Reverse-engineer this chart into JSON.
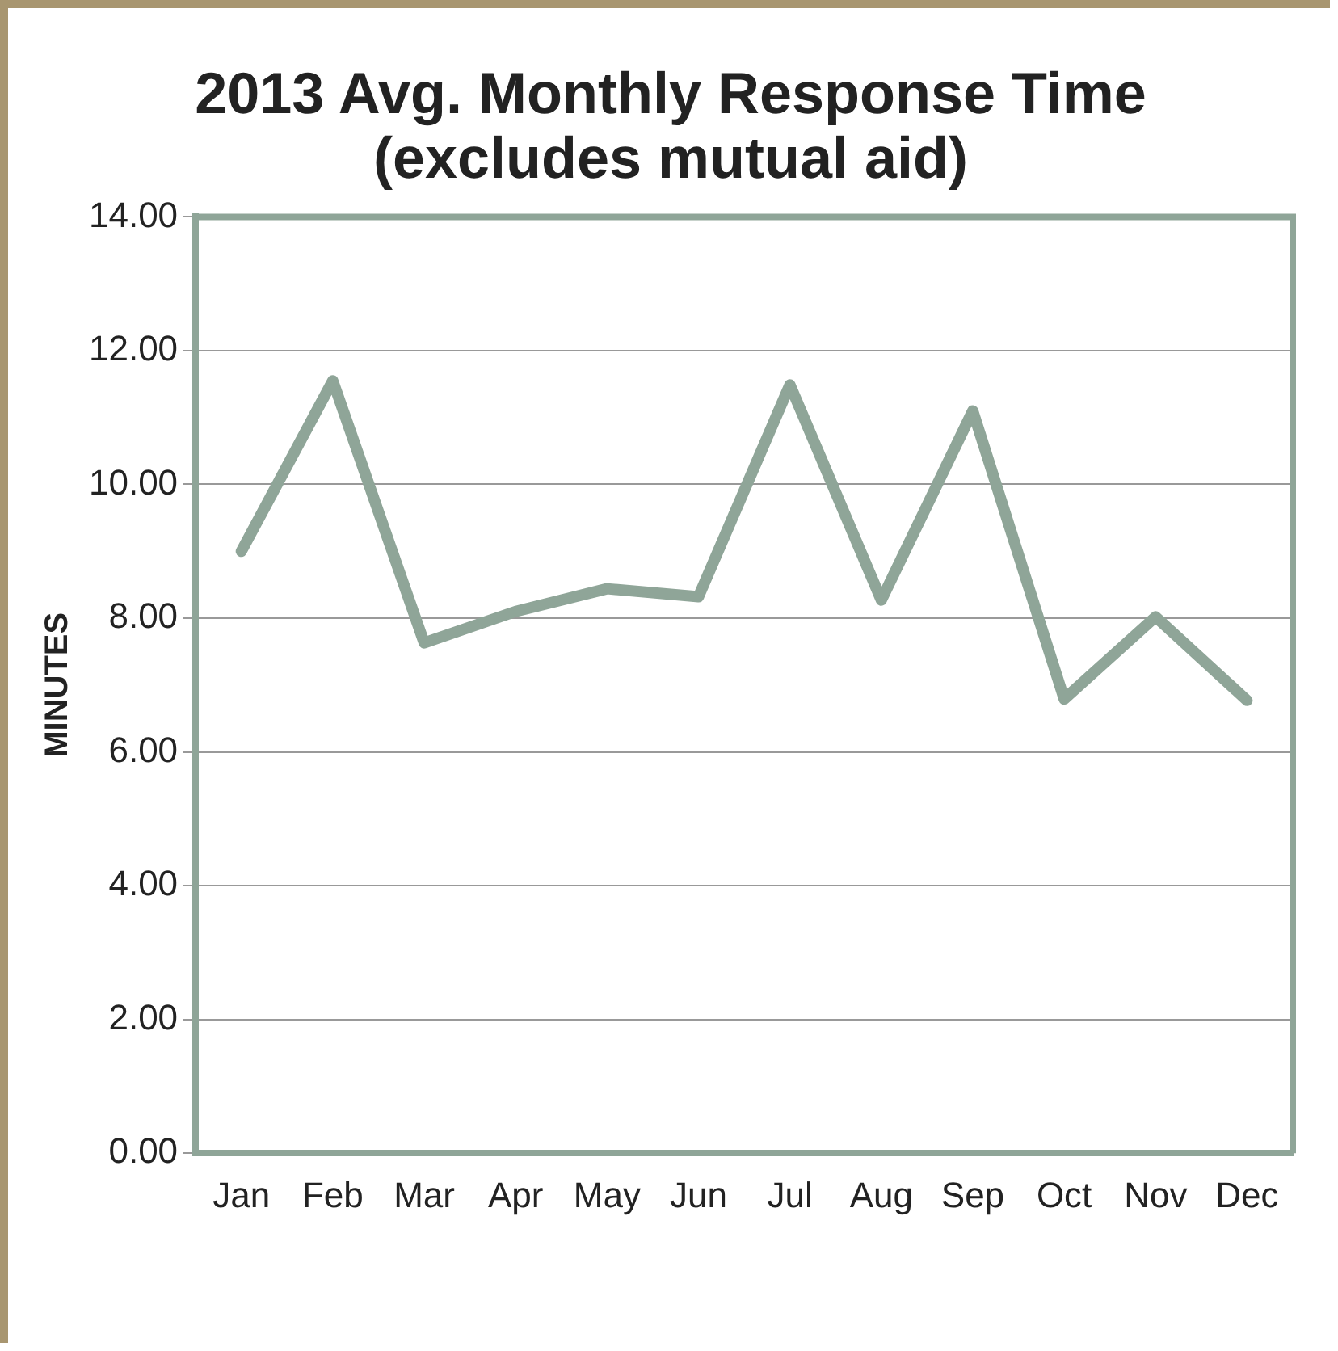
{
  "chart_data": {
    "type": "line",
    "title": "2013 Avg. Monthly Response Time",
    "subtitle": "(excludes mutual aid)",
    "ylabel": "MINUTES",
    "categories": [
      "Jan",
      "Feb",
      "Mar",
      "Apr",
      "May",
      "Jun",
      "Jul",
      "Aug",
      "Sep",
      "Oct",
      "Nov",
      "Dec"
    ],
    "series": [
      {
        "color": "#8fa598",
        "values": [
          9.0,
          11.55,
          7.63,
          8.1,
          8.44,
          8.32,
          11.49,
          8.27,
          11.1,
          6.79,
          8.02,
          6.77
        ]
      }
    ],
    "ylim": [
      0,
      14
    ],
    "yticks": [
      {
        "value": 0,
        "label": "0.00"
      },
      {
        "value": 2,
        "label": "2.00"
      },
      {
        "value": 4,
        "label": "4.00"
      },
      {
        "value": 6,
        "label": "6.00"
      },
      {
        "value": 8,
        "label": "8.00"
      },
      {
        "value": 10,
        "label": "10.00"
      },
      {
        "value": 12,
        "label": "12.00"
      },
      {
        "value": 14,
        "label": "14.00"
      }
    ],
    "grid": "y",
    "legend": false,
    "marker": "none",
    "line_style": "solid"
  }
}
